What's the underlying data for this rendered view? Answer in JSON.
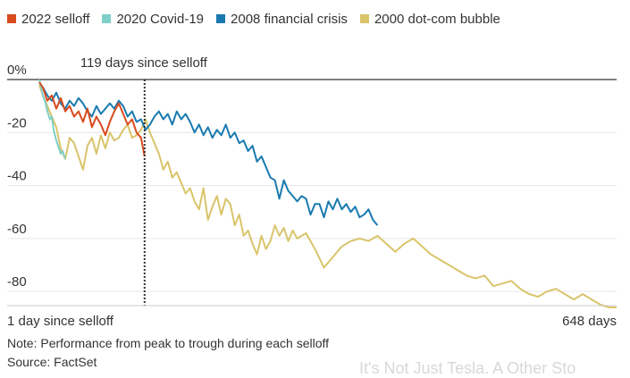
{
  "colors": {
    "selloff_2022": "#d94a1e",
    "covid_2020": "#7fcfc8",
    "financial_2008": "#1a7ab0",
    "dotcom_2000": "#d9c46a",
    "grid": "#e6e6e6",
    "zero_line": "#333333",
    "text": "#333333"
  },
  "legend": [
    {
      "label": "2022 selloff",
      "color": "#d94a1e"
    },
    {
      "label": "2020 Covid-19",
      "color": "#7fcfc8"
    },
    {
      "label": "2008 financial crisis",
      "color": "#1a7ab0"
    },
    {
      "label": "2000 dot-com bubble",
      "color": "#d9c46a"
    }
  ],
  "annotation": {
    "label": "119 days since selloff",
    "x": 119
  },
  "x_axis": {
    "start_label": "1 day since selloff",
    "end_label": "648 days"
  },
  "note": "Note: Performance from peak to trough during each selloff",
  "source": "Source: FactSet",
  "watermark": "It's Not Just Tesla. A Other Sto",
  "chart_data": {
    "type": "line",
    "xlim": [
      1,
      648
    ],
    "ylim": [
      -85,
      0
    ],
    "y_ticks": [
      {
        "value": 0,
        "label": "0%"
      },
      {
        "value": -20,
        "label": "-20"
      },
      {
        "value": -40,
        "label": "-40"
      },
      {
        "value": -60,
        "label": "-60"
      },
      {
        "value": -80,
        "label": "-80"
      }
    ],
    "grid": true,
    "legend_position": "top",
    "series": [
      {
        "name": "2000 dot-com bubble",
        "color": "#d9c46a",
        "x": [
          1,
          5,
          10,
          15,
          20,
          25,
          30,
          35,
          40,
          45,
          50,
          55,
          60,
          65,
          70,
          75,
          80,
          85,
          90,
          95,
          100,
          105,
          110,
          115,
          120,
          125,
          130,
          135,
          140,
          145,
          150,
          155,
          160,
          165,
          170,
          175,
          180,
          185,
          190,
          195,
          200,
          205,
          210,
          215,
          220,
          225,
          230,
          235,
          240,
          245,
          250,
          255,
          260,
          265,
          270,
          275,
          280,
          285,
          290,
          300,
          310,
          320,
          330,
          340,
          350,
          360,
          370,
          380,
          390,
          400,
          410,
          420,
          430,
          440,
          450,
          460,
          470,
          480,
          490,
          500,
          510,
          520,
          530,
          540,
          550,
          560,
          570,
          580,
          590,
          600,
          610,
          620,
          630,
          640,
          648
        ],
        "values": [
          -2,
          -6,
          -10,
          -14,
          -18,
          -26,
          -30,
          -22,
          -24,
          -29,
          -34,
          -25,
          -22,
          -28,
          -21,
          -26,
          -20,
          -23,
          -22,
          -19,
          -17,
          -22,
          -21,
          -19,
          -15,
          -20,
          -24,
          -28,
          -34,
          -31,
          -37,
          -35,
          -39,
          -43,
          -41,
          -46,
          -49,
          -41,
          -53,
          -48,
          -44,
          -51,
          -45,
          -47,
          -55,
          -51,
          -59,
          -57,
          -62,
          -66,
          -59,
          -64,
          -61,
          -55,
          -59,
          -56,
          -61,
          -57,
          -60,
          -58,
          -64,
          -71,
          -67,
          -63,
          -61,
          -60,
          -61,
          -59,
          -62,
          -65,
          -62,
          -60,
          -63,
          -66,
          -68,
          -70,
          -72,
          -74,
          -75,
          -74,
          -78,
          -77,
          -76,
          -79,
          -81,
          -82,
          -80,
          -79,
          -81,
          -83,
          -81,
          -83,
          -85,
          -86,
          -86
        ]
      },
      {
        "name": "2008 financial crisis",
        "color": "#1a7ab0",
        "x": [
          1,
          5,
          10,
          15,
          20,
          25,
          30,
          35,
          40,
          45,
          50,
          55,
          60,
          65,
          70,
          75,
          80,
          85,
          90,
          95,
          100,
          105,
          110,
          115,
          120,
          125,
          130,
          135,
          140,
          145,
          150,
          155,
          160,
          165,
          170,
          175,
          180,
          185,
          190,
          195,
          200,
          205,
          210,
          215,
          220,
          225,
          230,
          235,
          240,
          245,
          250,
          255,
          260,
          265,
          270,
          275,
          280,
          285,
          290,
          295,
          300,
          305,
          310,
          315,
          320,
          325,
          330,
          335,
          340,
          345,
          350,
          355,
          360,
          365,
          370,
          375,
          380
        ],
        "values": [
          -1,
          -3,
          -6,
          -8,
          -5,
          -9,
          -11,
          -8,
          -10,
          -7,
          -9,
          -12,
          -14,
          -10,
          -13,
          -11,
          -9,
          -11,
          -8,
          -10,
          -14,
          -12,
          -16,
          -15,
          -19,
          -17,
          -14,
          -12,
          -15,
          -13,
          -17,
          -12,
          -15,
          -13,
          -16,
          -20,
          -17,
          -21,
          -18,
          -22,
          -19,
          -21,
          -17,
          -22,
          -20,
          -24,
          -23,
          -27,
          -25,
          -31,
          -29,
          -33,
          -37,
          -38,
          -45,
          -38,
          -42,
          -44,
          -46,
          -44,
          -45,
          -51,
          -47,
          -47,
          -52,
          -46,
          -49,
          -45,
          -49,
          -47,
          -50,
          -48,
          -52,
          -51,
          -49,
          -53,
          -55
        ]
      },
      {
        "name": "2020 Covid-19",
        "color": "#7fcfc8",
        "x": [
          1,
          3,
          5,
          8,
          10,
          13,
          15,
          17,
          20,
          22,
          25,
          27,
          30
        ],
        "values": [
          0,
          -3,
          -6,
          -9,
          -12,
          -15,
          -14,
          -19,
          -23,
          -25,
          -28,
          -27,
          -30
        ]
      },
      {
        "name": "2022 selloff",
        "color": "#d94a1e",
        "x": [
          1,
          5,
          10,
          15,
          20,
          25,
          30,
          35,
          40,
          45,
          50,
          55,
          60,
          65,
          70,
          75,
          80,
          85,
          90,
          95,
          100,
          105,
          110,
          115,
          119
        ],
        "values": [
          -1,
          -3,
          -8,
          -6,
          -11,
          -7,
          -12,
          -10,
          -14,
          -12,
          -16,
          -11,
          -18,
          -14,
          -17,
          -21,
          -16,
          -12,
          -9,
          -13,
          -17,
          -15,
          -20,
          -22,
          -29
        ]
      }
    ]
  }
}
